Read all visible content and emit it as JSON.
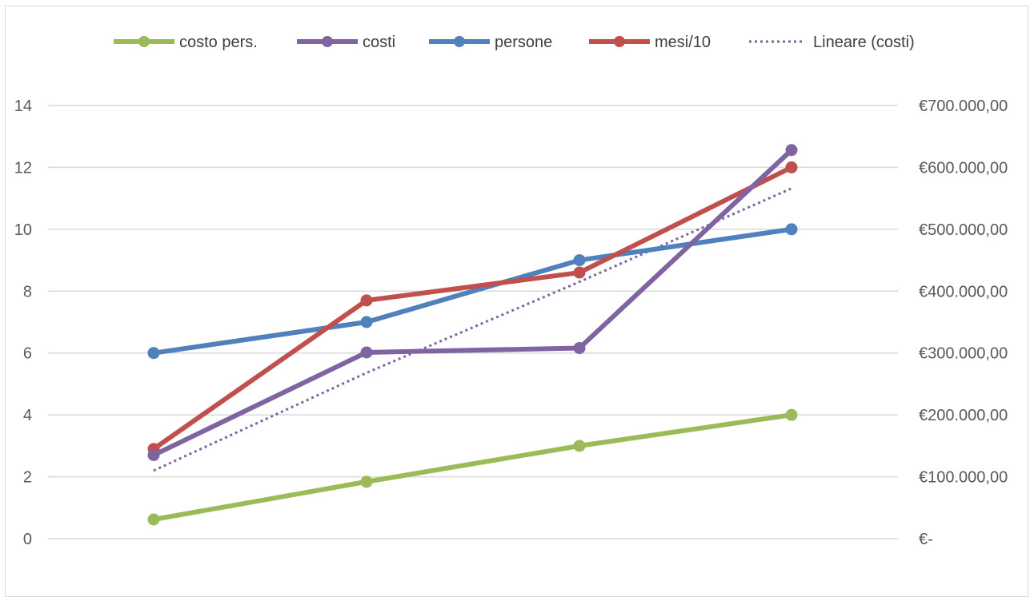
{
  "chart_data": {
    "type": "line",
    "title": "",
    "xlabel": "",
    "ylabel": "",
    "categories": [
      "",
      "",
      "",
      ""
    ],
    "y_left": {
      "ticks": [
        "0",
        "2",
        "4",
        "6",
        "8",
        "10",
        "12",
        "14"
      ],
      "range": [
        0,
        14
      ]
    },
    "y_right": {
      "ticks": [
        "€-",
        "€100.000,00",
        "€200.000,00",
        "€300.000,00",
        "€400.000,00",
        "€500.000,00",
        "€600.000,00",
        "€700.000,00"
      ],
      "range": [
        0,
        700000
      ]
    },
    "grid": true,
    "legend_position": "top",
    "series": [
      {
        "name": "costo pers.",
        "color": "#9BBB59",
        "axis": "left",
        "values": [
          0.62,
          1.84,
          3.0,
          4.0
        ]
      },
      {
        "name": "costi",
        "color": "#8064A2",
        "axis": "right",
        "values": [
          135000,
          301000,
          308000,
          628000
        ]
      },
      {
        "name": "persone",
        "color": "#4F81BD",
        "axis": "left",
        "values": [
          6,
          7,
          9,
          10
        ]
      },
      {
        "name": "mesi/10",
        "color": "#C0504D",
        "axis": "left",
        "values": [
          2.9,
          7.7,
          8.6,
          12.0
        ]
      }
    ],
    "trendline": {
      "name": "Lineare (costi)",
      "color": "#8064A2",
      "style": "dotted",
      "of": "costi",
      "values": [
        110000,
        268000,
        415000,
        566000
      ]
    }
  }
}
